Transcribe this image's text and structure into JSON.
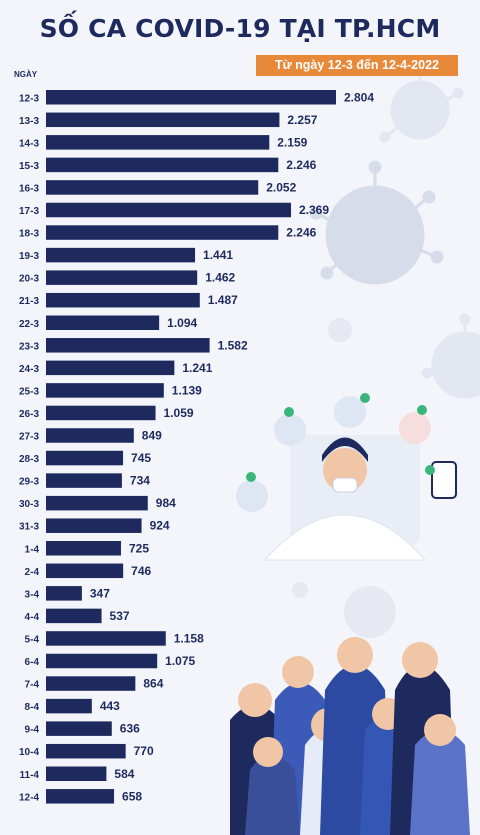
{
  "title": "SỐ CA COVID-19 TẠI TP.HCM",
  "subtitle": "Từ ngày 12-3 đến 12-4-2022",
  "chart_data": {
    "type": "bar",
    "orientation": "horizontal",
    "ylabel": "NGÀY",
    "categories": [
      "12-3",
      "13-3",
      "14-3",
      "15-3",
      "16-3",
      "17-3",
      "18-3",
      "19-3",
      "20-3",
      "21-3",
      "22-3",
      "23-3",
      "24-3",
      "25-3",
      "26-3",
      "27-3",
      "28-3",
      "29-3",
      "30-3",
      "31-3",
      "1-4",
      "2-4",
      "3-4",
      "4-4",
      "5-4",
      "6-4",
      "7-4",
      "8-4",
      "9-4",
      "10-4",
      "11-4",
      "12-4"
    ],
    "values": [
      2804,
      2257,
      2159,
      2246,
      2052,
      2369,
      2246,
      1441,
      1462,
      1487,
      1094,
      1582,
      1241,
      1139,
      1059,
      849,
      745,
      734,
      984,
      924,
      725,
      746,
      347,
      537,
      1158,
      1075,
      864,
      443,
      636,
      770,
      584,
      658
    ],
    "value_labels": [
      "2.804",
      "2.257",
      "2.159",
      "2.246",
      "2.052",
      "2.369",
      "2.246",
      "1.441",
      "1.462",
      "1.487",
      "1.094",
      "1.582",
      "1.241",
      "1.139",
      "1.059",
      "849",
      "745",
      "734",
      "984",
      "924",
      "725",
      "746",
      "347",
      "537",
      "1.158",
      "1.075",
      "864",
      "443",
      "636",
      "770",
      "584",
      "658"
    ],
    "bar_color": "#1e2a5e",
    "xlim": [
      0,
      2804
    ]
  },
  "colors": {
    "navy": "#1e2a5e",
    "orange": "#e8893a",
    "virus": "#d7dcea",
    "background": "#f3f5fa"
  }
}
